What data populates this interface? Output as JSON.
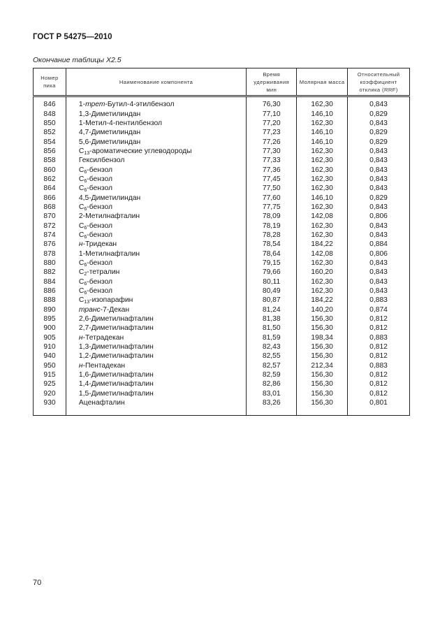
{
  "header": {
    "standard": "ГОСТ Р 54275—2010",
    "caption": "Окончание таблицы X2.5"
  },
  "table": {
    "columns": [
      "Номер пика",
      "Наименование компонента",
      "Время удерживания мин",
      "Молярная масса",
      "Относительный коэффициент отклика (RRF)"
    ],
    "rows": [
      {
        "n": "846",
        "name": [
          {
            "t": "1-"
          },
          {
            "t": "трет",
            "s": "i"
          },
          {
            "t": "-Бутил-4-этилбензол"
          }
        ],
        "rt": "76,30",
        "mm": "162,30",
        "rrf": "0,843"
      },
      {
        "n": "848",
        "name": [
          {
            "t": "1,3-Диметилиндан"
          }
        ],
        "rt": "77,10",
        "mm": "146,10",
        "rrf": "0,829"
      },
      {
        "n": "850",
        "name": [
          {
            "t": "1-Метил-4-пентилбензол"
          }
        ],
        "rt": "77,20",
        "mm": "162,30",
        "rrf": "0,843"
      },
      {
        "n": "852",
        "name": [
          {
            "t": "4,7-Диметилиндан"
          }
        ],
        "rt": "77,23",
        "mm": "146,10",
        "rrf": "0,829"
      },
      {
        "n": "854",
        "name": [
          {
            "t": "5,6-Диметилиндан"
          }
        ],
        "rt": "77,26",
        "mm": "146,10",
        "rrf": "0,829"
      },
      {
        "n": "856",
        "name": [
          {
            "t": "C"
          },
          {
            "t": "13",
            "s": "sub"
          },
          {
            "t": "-ароматические углеводороды"
          }
        ],
        "rt": "77,30",
        "mm": "162,30",
        "rrf": "0,843"
      },
      {
        "n": "858",
        "name": [
          {
            "t": "Гексилбензол"
          }
        ],
        "rt": "77,33",
        "mm": "162,30",
        "rrf": "0,843"
      },
      {
        "n": "860",
        "name": [
          {
            "t": "C"
          },
          {
            "t": "6",
            "s": "sub"
          },
          {
            "t": "-бензол"
          }
        ],
        "rt": "77,36",
        "mm": "162,30",
        "rrf": "0,843"
      },
      {
        "n": "862",
        "name": [
          {
            "t": "C"
          },
          {
            "t": "6",
            "s": "sub"
          },
          {
            "t": "-бензол"
          }
        ],
        "rt": "77,45",
        "mm": "162,30",
        "rrf": "0,843"
      },
      {
        "n": "864",
        "name": [
          {
            "t": "C"
          },
          {
            "t": "6",
            "s": "sub"
          },
          {
            "t": "-бензол"
          }
        ],
        "rt": "77,50",
        "mm": "162,30",
        "rrf": "0,843"
      },
      {
        "n": "866",
        "name": [
          {
            "t": "4,5-Диметилиндан"
          }
        ],
        "rt": "77,60",
        "mm": "146,10",
        "rrf": "0,829"
      },
      {
        "n": "868",
        "name": [
          {
            "t": "C"
          },
          {
            "t": "6",
            "s": "sub"
          },
          {
            "t": "-бензол"
          }
        ],
        "rt": "77,75",
        "mm": "162,30",
        "rrf": "0,843"
      },
      {
        "n": "870",
        "name": [
          {
            "t": "2-Метилнафталин"
          }
        ],
        "rt": "78,09",
        "mm": "142,08",
        "rrf": "0,806"
      },
      {
        "n": "872",
        "name": [
          {
            "t": "C"
          },
          {
            "t": "6",
            "s": "sub"
          },
          {
            "t": "-бензол"
          }
        ],
        "rt": "78,19",
        "mm": "162,30",
        "rrf": "0,843"
      },
      {
        "n": "874",
        "name": [
          {
            "t": "C"
          },
          {
            "t": "6",
            "s": "sub"
          },
          {
            "t": "-бензол"
          }
        ],
        "rt": "78,28",
        "mm": "162,30",
        "rrf": "0,843"
      },
      {
        "n": "876",
        "name": [
          {
            "t": "н",
            "s": "i"
          },
          {
            "t": "-Тридекан"
          }
        ],
        "rt": "78,54",
        "mm": "184,22",
        "rrf": "0,884"
      },
      {
        "n": "878",
        "name": [
          {
            "t": "1-Метилнафталин"
          }
        ],
        "rt": "78,64",
        "mm": "142,08",
        "rrf": "0,806"
      },
      {
        "n": "880",
        "name": [
          {
            "t": "C"
          },
          {
            "t": "6",
            "s": "sub"
          },
          {
            "t": "-бензол"
          }
        ],
        "rt": "79,15",
        "mm": "162,30",
        "rrf": "0,843"
      },
      {
        "n": "882",
        "name": [
          {
            "t": "C"
          },
          {
            "t": "2",
            "s": "sub"
          },
          {
            "t": "-тетралин"
          }
        ],
        "rt": "79,66",
        "mm": "160,20",
        "rrf": "0,843"
      },
      {
        "n": "884",
        "name": [
          {
            "t": "C"
          },
          {
            "t": "6",
            "s": "sub"
          },
          {
            "t": "-бензол"
          }
        ],
        "rt": "80,11",
        "mm": "162,30",
        "rrf": "0,843"
      },
      {
        "n": "886",
        "name": [
          {
            "t": "C"
          },
          {
            "t": "6",
            "s": "sub"
          },
          {
            "t": "-бензол"
          }
        ],
        "rt": "80,49",
        "mm": "162,30",
        "rrf": "0,843"
      },
      {
        "n": "888",
        "name": [
          {
            "t": "C"
          },
          {
            "t": "13",
            "s": "sub"
          },
          {
            "t": "-изопарафин"
          }
        ],
        "rt": "80,87",
        "mm": "184,22",
        "rrf": "0,883"
      },
      {
        "n": "890",
        "name": [
          {
            "t": "транс",
            "s": "i"
          },
          {
            "t": "-7-Декан"
          }
        ],
        "rt": "81,24",
        "mm": "140,20",
        "rrf": "0,874"
      },
      {
        "n": "895",
        "name": [
          {
            "t": "2,6-Диметилнафталин"
          }
        ],
        "rt": "81,38",
        "mm": "156,30",
        "rrf": "0,812"
      },
      {
        "n": "900",
        "name": [
          {
            "t": "2,7-Диметилнафталин"
          }
        ],
        "rt": "81,50",
        "mm": "156,30",
        "rrf": "0,812"
      },
      {
        "n": "905",
        "name": [
          {
            "t": "н",
            "s": "i"
          },
          {
            "t": "-Тетрадекан"
          }
        ],
        "rt": "81,59",
        "mm": "198,34",
        "rrf": "0,883"
      },
      {
        "n": "910",
        "name": [
          {
            "t": "1,3-Диметилнафталин"
          }
        ],
        "rt": "82,43",
        "mm": "156,30",
        "rrf": "0,812"
      },
      {
        "n": "940",
        "name": [
          {
            "t": "1,2-Диметилнафталин"
          }
        ],
        "rt": "82,55",
        "mm": "156,30",
        "rrf": "0,812"
      },
      {
        "n": "950",
        "name": [
          {
            "t": "н",
            "s": "i"
          },
          {
            "t": "-Пентадекан"
          }
        ],
        "rt": "82,57",
        "mm": "212,34",
        "rrf": "0,883"
      },
      {
        "n": "915",
        "name": [
          {
            "t": "1,6-Диметилнафталин"
          }
        ],
        "rt": "82,59",
        "mm": "156,30",
        "rrf": "0,812"
      },
      {
        "n": "925",
        "name": [
          {
            "t": "1,4-Диметилнафталин"
          }
        ],
        "rt": "82,86",
        "mm": "156,30",
        "rrf": "0,812"
      },
      {
        "n": "920",
        "name": [
          {
            "t": "1,5-Диметилнафталин"
          }
        ],
        "rt": "83,01",
        "mm": "156,30",
        "rrf": "0,812"
      },
      {
        "n": "930",
        "name": [
          {
            "t": "Аценафталин"
          }
        ],
        "rt": "83,26",
        "mm": "156,30",
        "rrf": "0,801"
      }
    ]
  },
  "footer": {
    "page_number": "70"
  }
}
